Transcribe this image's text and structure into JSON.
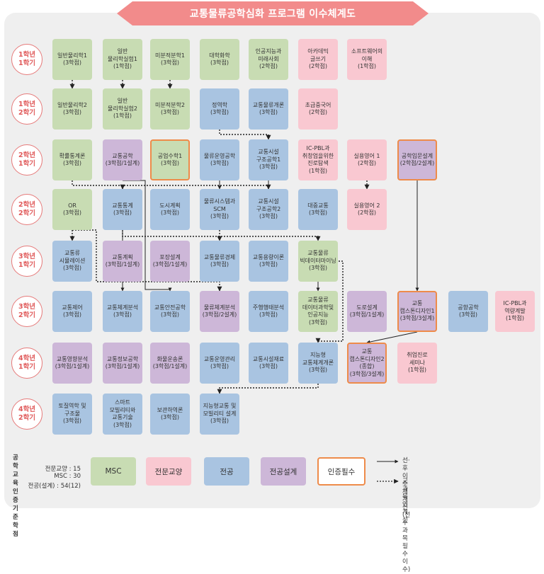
{
  "title": "교통물류공학심화 프로그램 이수체계도",
  "colors": {
    "msc": "#c8dcb3",
    "general": "#f9c8d1",
    "major": "#a9c4e1",
    "design": "#cdb7d8",
    "certified_border": "#ee8b4a",
    "semester_circle": "#e67a7a",
    "banner": "#f28b8b"
  },
  "semesters": [
    {
      "year": "1학년",
      "term": "1학기"
    },
    {
      "year": "1학년",
      "term": "2학기"
    },
    {
      "year": "2학년",
      "term": "1학기"
    },
    {
      "year": "2학년",
      "term": "2학기"
    },
    {
      "year": "3학년",
      "term": "1학기"
    },
    {
      "year": "3학년",
      "term": "2학기"
    },
    {
      "year": "4학년",
      "term": "1학기"
    },
    {
      "year": "4학년",
      "term": "2학기"
    }
  ],
  "courses": [
    {
      "id": "r1c1",
      "label": "일반물리학1\n(3학점)",
      "category": "msc"
    },
    {
      "id": "r1c2",
      "label": "일반\n물리학실험1\n(1학점)",
      "category": "msc"
    },
    {
      "id": "r1c3",
      "label": "미분적분학1\n(3학점)",
      "category": "msc"
    },
    {
      "id": "r1c4",
      "label": "대학화학\n(3학점)",
      "category": "msc"
    },
    {
      "id": "r1c5",
      "label": "인공지능과\n미래사회\n(2학점)",
      "category": "msc"
    },
    {
      "id": "r1c6",
      "label": "아카데믹\n글쓰기\n(2학점)",
      "category": "general"
    },
    {
      "id": "r1c7",
      "label": "소프트웨어의\n이해\n(1학점)",
      "category": "general"
    },
    {
      "id": "r2c1",
      "label": "일반물리학2\n(3학점)",
      "category": "msc"
    },
    {
      "id": "r2c2",
      "label": "일반\n물리학실험2\n(1학점)",
      "category": "msc"
    },
    {
      "id": "r2c3",
      "label": "미분적분학2\n(3학점)",
      "category": "msc"
    },
    {
      "id": "r2c4",
      "label": "정역학\n(3학점)",
      "category": "major"
    },
    {
      "id": "r2c5",
      "label": "교통물류개론\n(3학점)",
      "category": "major"
    },
    {
      "id": "r2c6",
      "label": "초급중국어\n(2학점)",
      "category": "general"
    },
    {
      "id": "r3c1",
      "label": "확률통계론\n(3학점)",
      "category": "msc"
    },
    {
      "id": "r3c2",
      "label": "교통공학\n(3학점/1설계)",
      "category": "design"
    },
    {
      "id": "r3c3",
      "label": "공업수학1\n(3학점)",
      "category": "msc",
      "certified": true
    },
    {
      "id": "r3c4",
      "label": "물류운영공학\n(3학점)",
      "category": "major"
    },
    {
      "id": "r3c5",
      "label": "교통시설\n구조공학1\n(3학점)",
      "category": "major"
    },
    {
      "id": "r3c6",
      "label": "IC-PBL과\n취창업을위한\n진로탐색\n(1학점)",
      "category": "general"
    },
    {
      "id": "r3c7",
      "label": "실용영어 1\n(2학점)",
      "category": "general"
    },
    {
      "id": "r3c8",
      "label": "공학입문설계\n(2학점/2설계)",
      "category": "design",
      "certified": true
    },
    {
      "id": "r4c1",
      "label": "OR\n(3학점)",
      "category": "msc"
    },
    {
      "id": "r4c2",
      "label": "교통통계\n(3학점)",
      "category": "major"
    },
    {
      "id": "r4c3",
      "label": "도시계획\n(3학점)",
      "category": "major"
    },
    {
      "id": "r4c4",
      "label": "물류시스템과\nSCM\n(3학점)",
      "category": "major"
    },
    {
      "id": "r4c5",
      "label": "교통시설\n구조공학2\n(3학점)",
      "category": "major"
    },
    {
      "id": "r4c6",
      "label": "대중교통\n(3학점)",
      "category": "major"
    },
    {
      "id": "r4c7",
      "label": "실용영어 2\n(2학점)",
      "category": "general"
    },
    {
      "id": "r5c1",
      "label": "교통류\n시뮬레이션\n(3학점)",
      "category": "major"
    },
    {
      "id": "r5c2",
      "label": "교통계획\n(3학점/1설계)",
      "category": "design"
    },
    {
      "id": "r5c3",
      "label": "포장설계\n(3학점/1설계)",
      "category": "design"
    },
    {
      "id": "r5c4",
      "label": "교통물류경제\n(3학점)",
      "category": "major"
    },
    {
      "id": "r5c5",
      "label": "교통용량이론\n(3학점)",
      "category": "major"
    },
    {
      "id": "r5c6",
      "label": "교통물류\n빅데이터마이닝\n(3학점)",
      "category": "msc"
    },
    {
      "id": "r6c1",
      "label": "교통제어\n(3학점)",
      "category": "major"
    },
    {
      "id": "r6c2",
      "label": "교통체계분석\n(3학점)",
      "category": "major"
    },
    {
      "id": "r6c3",
      "label": "교통안전공학\n(3학점)",
      "category": "major"
    },
    {
      "id": "r6c4",
      "label": "물류체계분석\n(3학점/2설계)",
      "category": "design"
    },
    {
      "id": "r6c5",
      "label": "주행행태분석\n(3학점)",
      "category": "major"
    },
    {
      "id": "r6c6",
      "label": "교통물류\n데이터과학및\n인공지능\n(3학점)",
      "category": "msc"
    },
    {
      "id": "r6c7",
      "label": "도로설계\n(3학점/1설계)",
      "category": "design"
    },
    {
      "id": "r6c8",
      "label": "교통\n캡스톤디자인1\n(3학점/3설계)",
      "category": "design",
      "certified": true
    },
    {
      "id": "r6c9",
      "label": "공항공학\n(3학점)",
      "category": "major"
    },
    {
      "id": "r6c10",
      "label": "IC-PBL과\n역량계발\n(1학점)",
      "category": "general"
    },
    {
      "id": "r7c1",
      "label": "교통영향분석\n(3학점/1설계)",
      "category": "design"
    },
    {
      "id": "r7c2",
      "label": "교통정보공학\n(3학점/1설계)",
      "category": "design"
    },
    {
      "id": "r7c3",
      "label": "화물운송론\n(3학점/1설계)",
      "category": "design"
    },
    {
      "id": "r7c4",
      "label": "교통운영관리\n(3학점)",
      "category": "major"
    },
    {
      "id": "r7c5",
      "label": "교통시설재료\n(3학점)",
      "category": "major"
    },
    {
      "id": "r7c6",
      "label": "지능형\n교통체계개론\n(3학점)",
      "category": "major"
    },
    {
      "id": "r7c7",
      "label": "교통\n캡스톤디자인2\n(종합)\n(3학점/3설계)",
      "category": "design",
      "certified": true
    },
    {
      "id": "r7c8",
      "label": "취업진로\n세미나\n(1학점)",
      "category": "general"
    },
    {
      "id": "r8c1",
      "label": "토질역학 및\n구조물\n(3학점)",
      "category": "major"
    },
    {
      "id": "r8c2",
      "label": "스마트\n모빌리티와\n교통기술\n(3학점)",
      "category": "major"
    },
    {
      "id": "r8c3",
      "label": "보관하역론\n(3학점)",
      "category": "major"
    },
    {
      "id": "r8c4",
      "label": "지능형교통 및\n모빌리티 설계\n(3학점)",
      "category": "major"
    }
  ],
  "legend": {
    "credits_title": "공학교육 인증 기준학점",
    "credits_lines": [
      "전문교양 : 15",
      "MSC : 30",
      "전공(설계) : 54(12)"
    ],
    "categories": [
      {
        "key": "msc",
        "label": "MSC"
      },
      {
        "key": "general",
        "label": "전문교양"
      },
      {
        "key": "major",
        "label": "전공"
      },
      {
        "key": "design",
        "label": "전공설계"
      },
      {
        "key": "certified",
        "label": "인증필수"
      }
    ],
    "solid_line_label": "선·후 이수 체계선\n(선수과목 필수 이수)",
    "dotted_line_label": "교과목 연계선"
  }
}
